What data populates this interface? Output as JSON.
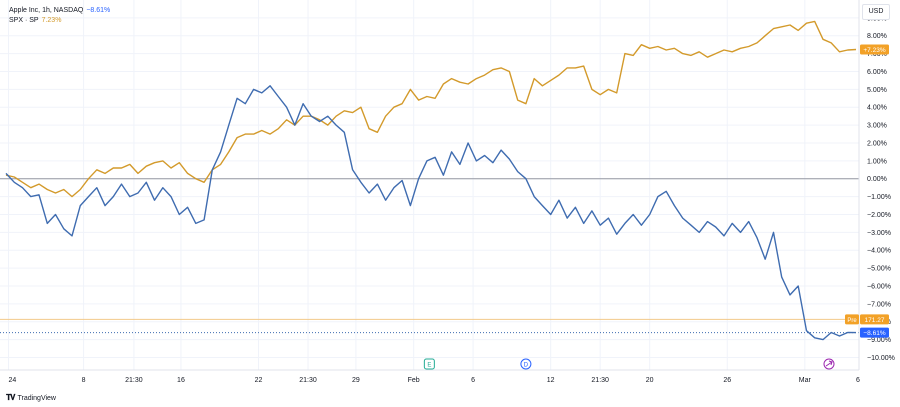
{
  "legend": {
    "primary": {
      "name": "Apple Inc, 1h, NASDAQ",
      "change": "−8.61%"
    },
    "secondary": {
      "name": "SPX · SP",
      "change": "7.23%"
    }
  },
  "currency": "USD",
  "footer": {
    "brand": "TradingView"
  },
  "colors": {
    "aapl": "#2962ff",
    "aapl_line": "#3f6cb0",
    "spx": "#d39a2b",
    "spx_tag": "#f2a127",
    "zero": "#9598a1",
    "grid": "#f0f3fa"
  },
  "chart_data": {
    "type": "line",
    "ylim": [
      -10.7,
      10.0
    ],
    "xlim": [
      0,
      100
    ],
    "y_ticks": [
      "9.00%",
      "8.00%",
      "7.00%",
      "6.00%",
      "5.00%",
      "4.00%",
      "3.00%",
      "2.00%",
      "1.00%",
      "0.00%",
      "−1.00%",
      "−2.00%",
      "−3.00%",
      "−4.00%",
      "−5.00%",
      "−6.00%",
      "−7.00%",
      "−8.00%",
      "−9.00%",
      "−10.00%"
    ],
    "y_tick_values": [
      9,
      8,
      7,
      6,
      5,
      4,
      3,
      2,
      1,
      0,
      -1,
      -2,
      -3,
      -4,
      -5,
      -6,
      -7,
      -8,
      -9,
      -10
    ],
    "x_ticks": [
      {
        "label": "24",
        "x": 0.3
      },
      {
        "label": "8",
        "x": 9.4
      },
      {
        "label": "21:30",
        "x": 15.5
      },
      {
        "label": "16",
        "x": 21.2
      },
      {
        "label": "22",
        "x": 30.6
      },
      {
        "label": "21:30",
        "x": 36.6
      },
      {
        "label": "29",
        "x": 42.4
      },
      {
        "label": "Feb",
        "x": 49.4
      },
      {
        "label": "6",
        "x": 56.6
      },
      {
        "label": "12",
        "x": 66.0
      },
      {
        "label": "21:30",
        "x": 72.0
      },
      {
        "label": "20",
        "x": 78.0
      },
      {
        "label": "26",
        "x": 87.4
      },
      {
        "label": "Mar",
        "x": 96.8
      },
      {
        "label": "6",
        "x": 103.5
      }
    ],
    "series": [
      {
        "name": "Apple Inc, 1h, NASDAQ",
        "color": "#3f6cb0",
        "last_label": "−8.61%",
        "x": [
          0,
          1,
          2,
          3,
          4,
          5,
          6,
          7,
          8,
          9,
          10,
          11,
          12,
          13,
          14,
          15,
          16,
          17,
          18,
          19,
          20,
          21,
          22,
          23,
          24,
          25,
          26,
          27,
          28,
          29,
          30,
          31,
          32,
          33,
          34,
          35,
          36,
          37,
          38,
          39,
          40,
          41,
          42,
          43,
          44,
          45,
          46,
          47,
          48,
          49,
          50,
          51,
          52,
          53,
          54,
          55,
          56,
          57,
          58,
          59,
          60,
          61,
          62,
          63,
          64,
          65,
          66,
          67,
          68,
          69,
          70,
          71,
          72,
          73,
          74,
          75,
          76,
          77,
          78,
          79,
          80,
          81,
          82,
          83,
          84,
          85,
          86,
          87,
          88,
          89,
          90,
          91,
          92,
          93,
          94,
          95,
          96,
          97,
          98,
          99,
          100,
          101,
          102,
          103
        ],
        "values": [
          0.3,
          -0.2,
          -0.5,
          -1.0,
          -0.9,
          -2.5,
          -2.0,
          -2.8,
          -3.2,
          -1.5,
          -1.0,
          -0.5,
          -1.5,
          -1.0,
          -0.3,
          -1.0,
          -0.8,
          -0.2,
          -1.2,
          -0.5,
          -1.0,
          -2.0,
          -1.6,
          -2.5,
          -2.3,
          0.5,
          1.5,
          3.0,
          4.5,
          4.2,
          5.0,
          4.8,
          5.2,
          4.6,
          4.0,
          3.0,
          4.2,
          3.5,
          3.2,
          3.5,
          3.0,
          2.6,
          0.5,
          -0.2,
          -0.8,
          -0.3,
          -1.2,
          -0.5,
          -0.1,
          -1.5,
          0.0,
          1.0,
          1.2,
          0.2,
          1.5,
          0.8,
          2.0,
          1.0,
          1.3,
          0.9,
          1.6,
          1.1,
          0.4,
          0.0,
          -1.0,
          -1.5,
          -2.0,
          -1.2,
          -2.2,
          -1.6,
          -2.5,
          -1.8,
          -2.6,
          -2.2,
          -3.1,
          -2.5,
          -2.0,
          -2.6,
          -2.0,
          -1.0,
          -0.7,
          -1.5,
          -2.2,
          -2.6,
          -3.0,
          -2.4,
          -2.7,
          -3.2,
          -2.5,
          -3.0,
          -2.4,
          -3.3,
          -4.5,
          -3.0,
          -5.5,
          -6.5,
          -6.0,
          -8.5,
          -8.9,
          -9.0,
          -8.6,
          -8.8,
          -8.6,
          -8.61
        ]
      },
      {
        "name": "SPX · SP",
        "color": "#d39a2b",
        "last_label": "+7.23%",
        "x": [
          0,
          1,
          2,
          3,
          4,
          5,
          6,
          7,
          8,
          9,
          10,
          11,
          12,
          13,
          14,
          15,
          16,
          17,
          18,
          19,
          20,
          21,
          22,
          23,
          24,
          25,
          26,
          27,
          28,
          29,
          30,
          31,
          32,
          33,
          34,
          35,
          36,
          37,
          38,
          39,
          40,
          41,
          42,
          43,
          44,
          45,
          46,
          47,
          48,
          49,
          50,
          51,
          52,
          53,
          54,
          55,
          56,
          57,
          58,
          59,
          60,
          61,
          62,
          63,
          64,
          65,
          66,
          67,
          68,
          69,
          70,
          71,
          72,
          73,
          74,
          75,
          76,
          77,
          78,
          79,
          80,
          81,
          82,
          83,
          84,
          85,
          86,
          87,
          88,
          89,
          90,
          91,
          92,
          93,
          94,
          95,
          96,
          97,
          98,
          99,
          100,
          101,
          102,
          103
        ],
        "values": [
          0.2,
          0.1,
          -0.2,
          -0.5,
          -0.3,
          -0.6,
          -0.8,
          -0.6,
          -1.0,
          -0.6,
          0.0,
          0.5,
          0.3,
          0.6,
          0.6,
          0.8,
          0.3,
          0.7,
          0.9,
          1.0,
          0.6,
          0.9,
          0.3,
          0.0,
          -0.2,
          0.5,
          0.8,
          1.5,
          2.3,
          2.5,
          2.5,
          2.7,
          2.5,
          2.8,
          3.3,
          3.0,
          3.5,
          3.5,
          3.3,
          3.0,
          3.5,
          3.8,
          3.7,
          4.0,
          2.8,
          2.6,
          3.5,
          4.0,
          4.2,
          5.0,
          4.4,
          4.6,
          4.5,
          5.3,
          5.6,
          5.4,
          5.3,
          5.6,
          5.8,
          6.1,
          6.2,
          6.0,
          4.4,
          4.2,
          5.6,
          5.2,
          5.5,
          5.8,
          6.2,
          6.2,
          6.3,
          5.0,
          4.7,
          5.0,
          4.8,
          7.0,
          6.9,
          7.5,
          7.3,
          7.4,
          7.2,
          7.3,
          7.0,
          6.9,
          7.1,
          6.8,
          7.0,
          7.2,
          7.1,
          7.3,
          7.4,
          7.6,
          8.0,
          8.4,
          8.5,
          8.6,
          8.3,
          8.7,
          8.8,
          7.8,
          7.6,
          7.1,
          7.2,
          7.23
        ]
      }
    ],
    "markers": [
      {
        "label": "E",
        "x": 51.3,
        "shape": "square",
        "color": "#22ab94"
      },
      {
        "label": "D",
        "x": 63.0,
        "shape": "circle",
        "color": "#2962ff"
      }
    ],
    "price_tags": [
      {
        "label": "Pre",
        "value": "171.27",
        "y": -7.87,
        "color": "#f2a127"
      }
    ],
    "zero_line": 0
  }
}
